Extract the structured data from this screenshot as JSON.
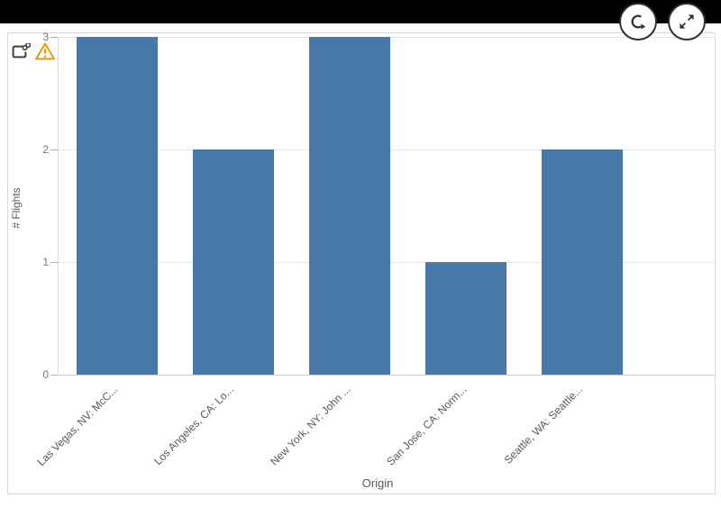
{
  "topbar": {},
  "controls": {
    "refresh_button": "refresh",
    "expand_button": "expand-fullscreen"
  },
  "panel_indicators": {
    "shared_object_icon": "linked-shared-object",
    "warning_icon": "warning-triangle"
  },
  "chart_data": {
    "type": "bar",
    "categories": [
      "Las Vegas, NV: McC...",
      "Los Angeles, CA: Lo...",
      "New York, NY: John ...",
      "San Jose, CA: Norm...",
      "Seattle, WA: Seattle..."
    ],
    "values": [
      3,
      2,
      3,
      1,
      2
    ],
    "title": "",
    "xlabel": "Origin",
    "ylabel": "# Flights",
    "yticks": [
      0,
      1,
      2,
      3
    ],
    "ylim": [
      0,
      3
    ],
    "grid": true,
    "legend": "none",
    "bar_color": "#4878a8"
  },
  "colors": {
    "bar": "#4878a8",
    "warning": "#f2930f",
    "gridline": "#e6e6e6",
    "axis": "#d9d9d9",
    "label_text": "#595959",
    "topbar": "#000000"
  }
}
